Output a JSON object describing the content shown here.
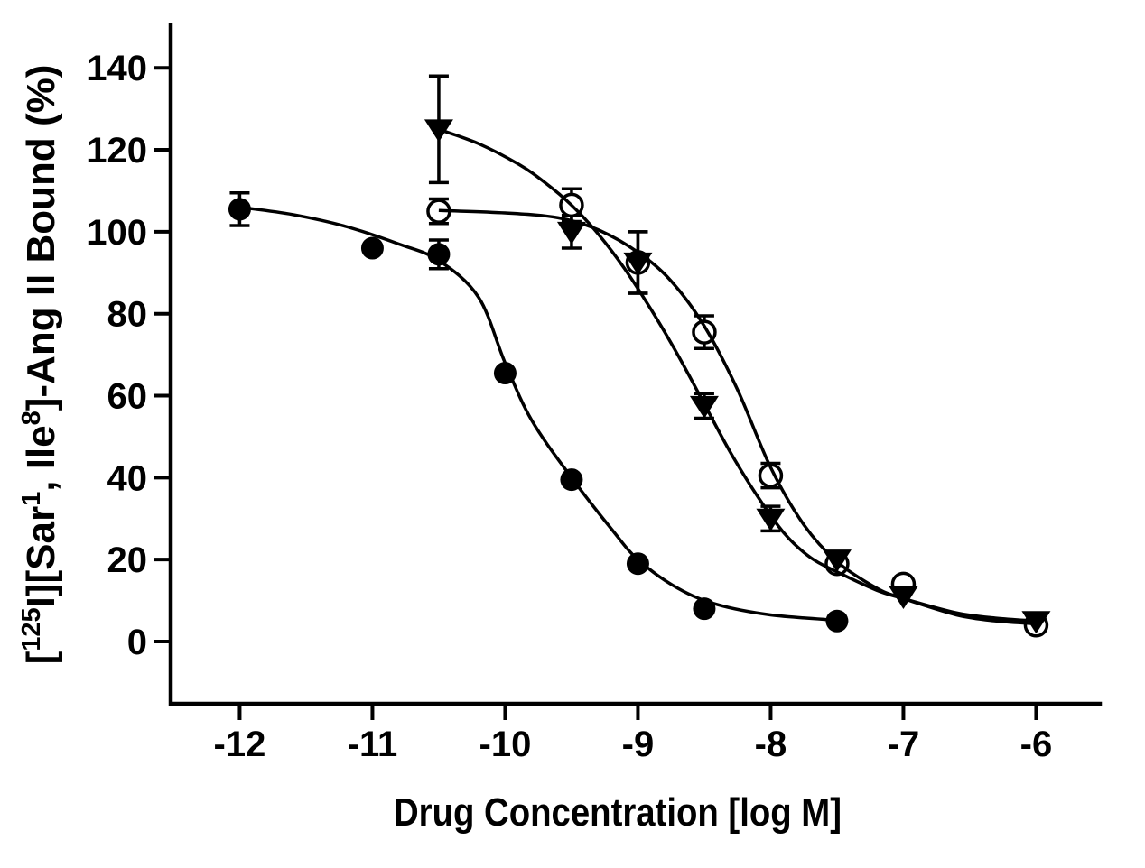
{
  "figure": {
    "background": "#ffffff",
    "ink_color": "#000000",
    "open_marker_fill": "#ffffff"
  },
  "chart_data": {
    "type": "scatter",
    "title": "",
    "xlabel": "Drug Concentration [log M]",
    "ylabel_segments": [
      {
        "text": "[",
        "sup": false
      },
      {
        "text": "125",
        "sup": true
      },
      {
        "text": "I][Sar",
        "sup": false
      },
      {
        "text": "1",
        "sup": true
      },
      {
        "text": ", Ile",
        "sup": false
      },
      {
        "text": "8",
        "sup": true
      },
      {
        "text": "]-Ang II Bound (%)",
        "sup": false
      }
    ],
    "x_ticks": [
      -12,
      -11,
      -10,
      -9,
      -8,
      -7,
      -6
    ],
    "y_ticks": [
      0,
      20,
      40,
      60,
      80,
      100,
      120,
      140
    ],
    "xlim": [
      -12.52,
      -5.52
    ],
    "ylim": [
      -15.2,
      150.4
    ],
    "grid": false,
    "legend": "none",
    "series": [
      {
        "name": "filled-circle",
        "marker": "filled-circle",
        "points": [
          {
            "x": -12,
            "y": 105.5,
            "err": 4
          },
          {
            "x": -11,
            "y": 96,
            "err": 0
          },
          {
            "x": -10.5,
            "y": 94.5,
            "err": 3.5
          },
          {
            "x": -10,
            "y": 65.5,
            "err": 0
          },
          {
            "x": -9.5,
            "y": 39.5,
            "err": 0
          },
          {
            "x": -9,
            "y": 19,
            "err": 0
          },
          {
            "x": -8.5,
            "y": 8,
            "err": 0
          },
          {
            "x": -7.5,
            "y": 5,
            "err": 0
          }
        ],
        "curve": [
          [
            -12,
            106
          ],
          [
            -11.6,
            104.2
          ],
          [
            -11.2,
            101.3
          ],
          [
            -10.8,
            97
          ],
          [
            -10.5,
            93
          ],
          [
            -10.2,
            84
          ],
          [
            -10,
            68
          ],
          [
            -9.8,
            54
          ],
          [
            -9.5,
            40
          ],
          [
            -9.2,
            27.5
          ],
          [
            -9,
            20
          ],
          [
            -8.7,
            13
          ],
          [
            -8.4,
            9
          ],
          [
            -8,
            6.5
          ],
          [
            -7.5,
            5.2
          ]
        ]
      },
      {
        "name": "open-circle",
        "marker": "open-circle",
        "points": [
          {
            "x": -10.5,
            "y": 105,
            "err": 3
          },
          {
            "x": -9.5,
            "y": 106.5,
            "err": 4
          },
          {
            "x": -9,
            "y": 92.5,
            "err": 7.5
          },
          {
            "x": -8.5,
            "y": 75.5,
            "err": 4
          },
          {
            "x": -8,
            "y": 40.5,
            "err": 3
          },
          {
            "x": -7.5,
            "y": 19,
            "err": 0
          },
          {
            "x": -7,
            "y": 14,
            "err": 0
          },
          {
            "x": -6,
            "y": 4,
            "err": 0
          }
        ],
        "curve": [
          [
            -10.5,
            105.2
          ],
          [
            -10,
            104.6
          ],
          [
            -9.6,
            103.4
          ],
          [
            -9.3,
            100.5
          ],
          [
            -9,
            95
          ],
          [
            -8.75,
            88
          ],
          [
            -8.5,
            77
          ],
          [
            -8.25,
            61.5
          ],
          [
            -8,
            42.5
          ],
          [
            -7.75,
            28.5
          ],
          [
            -7.5,
            19.5
          ],
          [
            -7.2,
            13
          ],
          [
            -7,
            10.5
          ],
          [
            -6.6,
            6.5
          ],
          [
            -6.3,
            5
          ],
          [
            -6,
            4.3
          ]
        ]
      },
      {
        "name": "filled-triangle",
        "marker": "filled-triangle",
        "points": [
          {
            "x": -10.5,
            "y": 125,
            "err": 13
          },
          {
            "x": -9.5,
            "y": 100,
            "err": 4
          },
          {
            "x": -9,
            "y": 92.5,
            "err": 7.5
          },
          {
            "x": -8.5,
            "y": 57.5,
            "err": 3
          },
          {
            "x": -8,
            "y": 30,
            "err": 3
          },
          {
            "x": -7.5,
            "y": 20,
            "err": 0
          },
          {
            "x": -7,
            "y": 11,
            "err": 0
          },
          {
            "x": -6,
            "y": 5,
            "err": 0
          }
        ],
        "curve": [
          [
            -10.5,
            125
          ],
          [
            -10.2,
            121.5
          ],
          [
            -9.9,
            116.5
          ],
          [
            -9.7,
            112
          ],
          [
            -9.5,
            106.5
          ],
          [
            -9.3,
            99.5
          ],
          [
            -9.1,
            91
          ],
          [
            -8.9,
            81
          ],
          [
            -8.7,
            70
          ],
          [
            -8.5,
            58
          ],
          [
            -8.3,
            46
          ],
          [
            -8.1,
            35.5
          ],
          [
            -7.9,
            26.5
          ],
          [
            -7.7,
            20.5
          ],
          [
            -7.5,
            17
          ],
          [
            -7.2,
            12.5
          ],
          [
            -7,
            10.5
          ],
          [
            -6.6,
            7
          ],
          [
            -6.3,
            5.7
          ],
          [
            -6,
            5
          ]
        ]
      }
    ]
  }
}
